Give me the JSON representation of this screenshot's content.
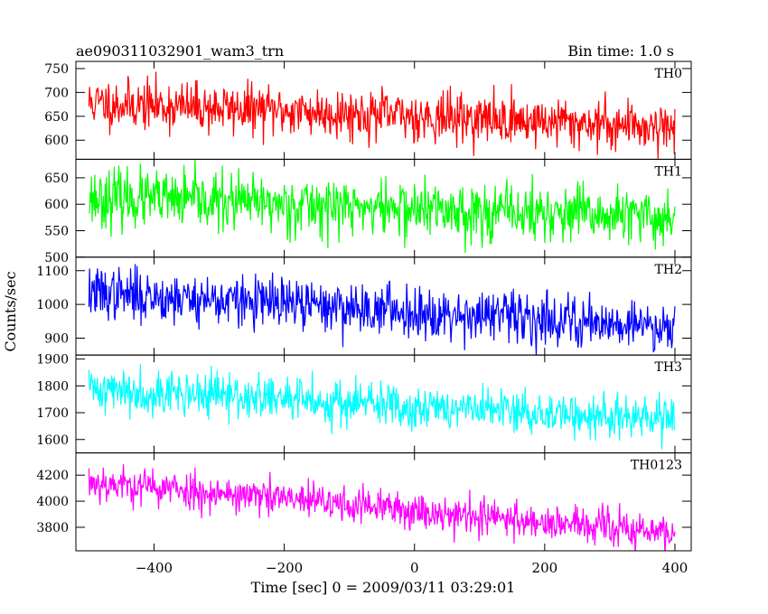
{
  "chart_data": {
    "type": "line",
    "title": "ae090311032901_wam3_trn",
    "subtitle": "Bin time: 1.0 s",
    "xlabel": "Time [sec] 0 = 2009/03/11 03:29:01",
    "ylabel": "Counts/sec",
    "xlim": [
      -520,
      425
    ],
    "x_ticks": [
      -400,
      -200,
      0,
      200,
      400
    ],
    "x_range": [
      -500,
      400
    ],
    "grid": false,
    "panels": [
      {
        "name": "TH0",
        "color": "#ff0000",
        "ylim": [
          560,
          765
        ],
        "y_ticks": [
          600,
          650,
          700,
          750
        ],
        "trend": {
          "start": 678,
          "end": 628
        },
        "noise": 26,
        "seed": 11
      },
      {
        "name": "TH1",
        "color": "#00ff00",
        "ylim": [
          500,
          685
        ],
        "y_ticks": [
          500,
          550,
          600,
          650
        ],
        "trend": {
          "start": 613,
          "end": 573
        },
        "noise": 27,
        "seed": 23
      },
      {
        "name": "TH2",
        "color": "#0000ff",
        "ylim": [
          850,
          1140
        ],
        "y_ticks": [
          900,
          1000,
          1100
        ],
        "trend": {
          "start": 1035,
          "end": 935
        },
        "noise": 38,
        "seed": 37
      },
      {
        "name": "TH3",
        "color": "#00ffff",
        "ylim": [
          1550,
          1915
        ],
        "y_ticks": [
          1600,
          1700,
          1800,
          1900
        ],
        "trend": {
          "start": 1790,
          "end": 1670
        },
        "noise": 42,
        "seed": 41
      },
      {
        "name": "TH0123",
        "color": "#ff00ff",
        "ylim": [
          3620,
          4370
        ],
        "y_ticks": [
          3800,
          4000,
          4200
        ],
        "trend": {
          "start": 4150,
          "end": 3750
        },
        "noise": 72,
        "seed": 53
      }
    ]
  }
}
